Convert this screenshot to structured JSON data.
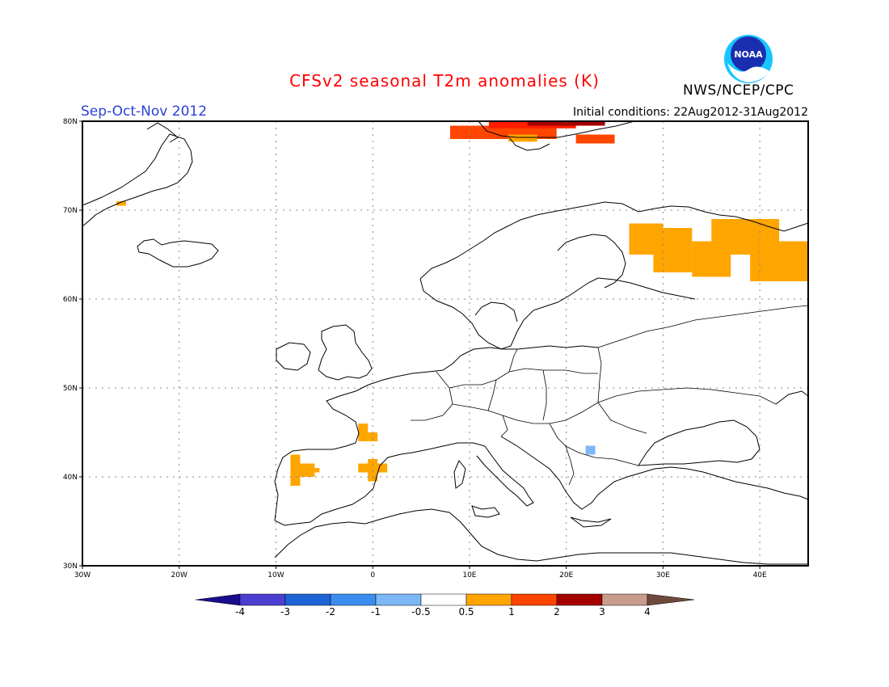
{
  "header": {
    "title": "CFSv2 seasonal T2m anomalies (K)",
    "season": "Sep-Oct-Nov 2012",
    "initial_conditions": "Initial conditions: 22Aug2012-31Aug2012",
    "agency": "NWS/NCEP/CPC",
    "logo_text": "NOAA"
  },
  "map": {
    "lon_range": [
      -30,
      45
    ],
    "lat_range": [
      30,
      80
    ],
    "gridlines": "dotted",
    "lon_ticks": [
      {
        "value": -30,
        "label": "30W"
      },
      {
        "value": -20,
        "label": "20W"
      },
      {
        "value": -10,
        "label": "10W"
      },
      {
        "value": 0,
        "label": "0"
      },
      {
        "value": 10,
        "label": "10E"
      },
      {
        "value": 20,
        "label": "20E"
      },
      {
        "value": 30,
        "label": "30E"
      },
      {
        "value": 40,
        "label": "40E"
      }
    ],
    "lat_ticks": [
      {
        "value": 30,
        "label": "30N"
      },
      {
        "value": 40,
        "label": "40N"
      },
      {
        "value": 50,
        "label": "50N"
      },
      {
        "value": 60,
        "label": "60N"
      },
      {
        "value": 70,
        "label": "70N"
      },
      {
        "value": 80,
        "label": "80N"
      }
    ],
    "colors": {
      "neg4": "#1a0c8c",
      "neg3": "#4a3fd0",
      "neg2": "#1f64d6",
      "neg1": "#3b8ef0",
      "neg05": "#7bb8f5",
      "neutral": "#ffffff",
      "pos05": "#ffa500",
      "pos1": "#ff4500",
      "pos2": "#ff1e00",
      "pos3": "#a50000",
      "pos4": "#c89b8c",
      "pos5": "#6e4a3c"
    },
    "anomaly_cells": [
      {
        "lon": -26.5,
        "lat": 70.5,
        "lon2": -25.5,
        "lat2": 71,
        "cls": "pos05"
      },
      {
        "lon": 8,
        "lat": 78,
        "lon2": 19,
        "lat2": 79.5,
        "cls": "pos1"
      },
      {
        "lon": 12,
        "lat": 79.2,
        "lon2": 21,
        "lat2": 80,
        "cls": "pos2"
      },
      {
        "lon": 16,
        "lat": 79.5,
        "lon2": 24,
        "lat2": 80,
        "cls": "pos3"
      },
      {
        "lon": 21,
        "lat": 77.5,
        "lon2": 25,
        "lat2": 78.5,
        "cls": "pos1"
      },
      {
        "lon": 14,
        "lat": 77.7,
        "lon2": 17,
        "lat2": 78.5,
        "cls": "pos05"
      },
      {
        "lon": 26.5,
        "lat": 65,
        "lon2": 30,
        "lat2": 68.5,
        "cls": "pos05"
      },
      {
        "lon": 29,
        "lat": 63,
        "lon2": 33,
        "lat2": 68,
        "cls": "pos05"
      },
      {
        "lon": 33,
        "lat": 62.5,
        "lon2": 37,
        "lat2": 66.5,
        "cls": "pos05"
      },
      {
        "lon": 35,
        "lat": 65,
        "lon2": 42,
        "lat2": 69,
        "cls": "pos05"
      },
      {
        "lon": 39,
        "lat": 62,
        "lon2": 45,
        "lat2": 66.5,
        "cls": "pos05"
      },
      {
        "lon": -1.5,
        "lat": 44,
        "lon2": -0.5,
        "lat2": 46,
        "cls": "pos05"
      },
      {
        "lon": -0.5,
        "lat": 44,
        "lon2": 0.5,
        "lat2": 45,
        "cls": "pos05"
      },
      {
        "lon": -8.5,
        "lat": 39,
        "lon2": -7.5,
        "lat2": 42.5,
        "cls": "pos05"
      },
      {
        "lon": -8,
        "lat": 40,
        "lon2": -6,
        "lat2": 41.5,
        "cls": "pos05"
      },
      {
        "lon": -6,
        "lat": 40.5,
        "lon2": -5.5,
        "lat2": 41,
        "cls": "pos05"
      },
      {
        "lon": -1.5,
        "lat": 40.5,
        "lon2": 1.5,
        "lat2": 41.5,
        "cls": "pos05"
      },
      {
        "lon": -0.5,
        "lat": 39.5,
        "lon2": 0.5,
        "lat2": 42,
        "cls": "pos05"
      },
      {
        "lon": 22,
        "lat": 42.5,
        "lon2": 23,
        "lat2": 43.5,
        "cls": "neg05"
      }
    ]
  },
  "colorbar": {
    "labels": [
      "-4",
      "-3",
      "-2",
      "-1",
      "-0.5",
      "0.5",
      "1",
      "2",
      "3",
      "4"
    ],
    "boxes": [
      "neg3",
      "neg2",
      "neg1",
      "neg05",
      "neutral",
      "pos05",
      "pos1",
      "pos3",
      "pos4"
    ],
    "left_arrow": "neg4",
    "right_arrow": "pos5"
  }
}
